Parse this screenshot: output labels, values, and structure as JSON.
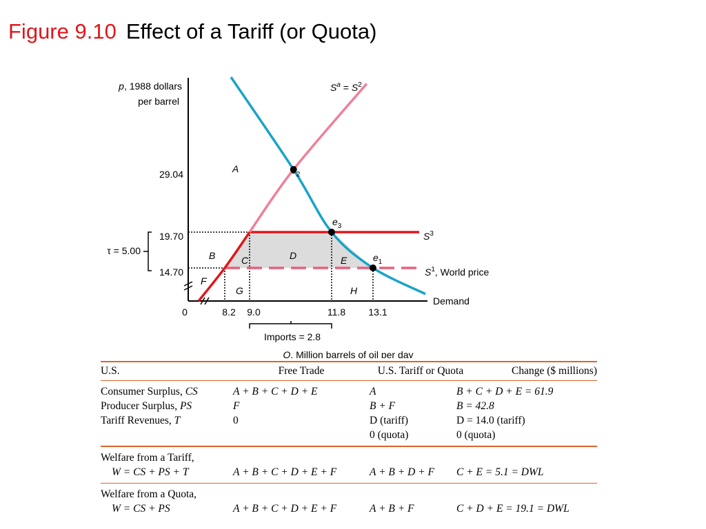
{
  "title": {
    "figure": "Figure 9.10",
    "text": "Effect of a Tariff (or Quota)"
  },
  "chart_data": {
    "type": "line",
    "ylabel_line1": ", 1988 dollars",
    "ylabel_var": "p",
    "ylabel_line2": "per barrel",
    "xlabel_var": "Q",
    "xlabel": ", Million barrels of oil per day",
    "x_ticks": [
      "0",
      "8.2",
      "9.0",
      "11.8",
      "13.1"
    ],
    "y_ticks": [
      "29.04",
      "19.70",
      "14.70"
    ],
    "origin_label": "0",
    "tariff_label": "τ = 5.00",
    "imports_label": "Imports = 2.8",
    "points": {
      "e1": [
        13.1,
        14.7
      ],
      "e2": [
        10.5,
        29.04
      ],
      "e3": [
        11.8,
        19.7
      ]
    },
    "series": [
      {
        "name": "Demand",
        "color": "#1aa3c8",
        "points": [
          [
            8.4,
            43.0
          ],
          [
            10.5,
            29.04
          ],
          [
            11.8,
            19.7
          ],
          [
            13.1,
            14.7
          ],
          [
            14.5,
            11.0
          ]
        ]
      },
      {
        "name": "Sa = S2",
        "color": "#f07f97",
        "points": [
          [
            6.9,
            10.0
          ],
          [
            8.2,
            14.7
          ],
          [
            9.0,
            19.7
          ],
          [
            10.5,
            29.04
          ],
          [
            12.9,
            42.0
          ]
        ]
      },
      {
        "name": "S3",
        "color": "#e0161b",
        "price": 19.7
      },
      {
        "name": "S1, World price",
        "color": "#e8607a",
        "price": 14.7
      }
    ],
    "area_labels": [
      "A",
      "B",
      "C",
      "D",
      "E",
      "F",
      "G",
      "H"
    ],
    "label_S3": "S",
    "label_S3_sup": "3",
    "label_S1": "S",
    "label_S1_sup": "1",
    "label_S1_rest": ", World price",
    "label_Sa": "S",
    "label_Sa_sup": "a",
    "label_Sa_eq": " = ",
    "label_S2": "S",
    "label_S2_sup": "2",
    "label_demand": "Demand",
    "label_e": "e",
    "label_e1_sub": "1",
    "label_e2_sub": "2",
    "label_e3_sub": "3",
    "colors": {
      "demand": "#1aa3c8",
      "supply": "#f07f97",
      "s3": "#e0161b",
      "world": "#e8607a",
      "shaded": "#dcdcdc"
    }
  },
  "table": {
    "headers": [
      "U.S.",
      "Free Trade",
      "U.S. Tariff or Quota",
      "Change ($ millions)"
    ],
    "rows": [
      {
        "label": "Consumer Surplus, ",
        "label_var": "CS",
        "free": "A + B + C + D + E",
        "tariff": "A",
        "change": "B + C + D + E = 61.9"
      },
      {
        "label": "Producer Surplus, ",
        "label_var": "PS",
        "free": "F",
        "tariff": "B + F",
        "change": "B = 42.8"
      },
      {
        "label": "Tariff Revenues, ",
        "label_var": "T",
        "free": "0",
        "tariff": "D (tariff)",
        "change": "D = 14.0 (tariff)"
      },
      {
        "label": "",
        "label_var": "",
        "free": "",
        "tariff": "0 (quota)",
        "change": "0 (quota)"
      }
    ],
    "welfare_tariff": {
      "title": "Welfare from a Tariff,",
      "formula": "W = CS + PS + T",
      "free": "A + B + C + D + E + F",
      "tariff": "A + B + D + F",
      "change": "C + E = 5.1 = DWL"
    },
    "welfare_quota": {
      "title": "Welfare from a Quota,",
      "formula": "W = CS + PS",
      "free": "A + B + C + D + E + F",
      "tariff": "A + B + F",
      "change": "C + D + E = 19.1 = DWL"
    }
  }
}
